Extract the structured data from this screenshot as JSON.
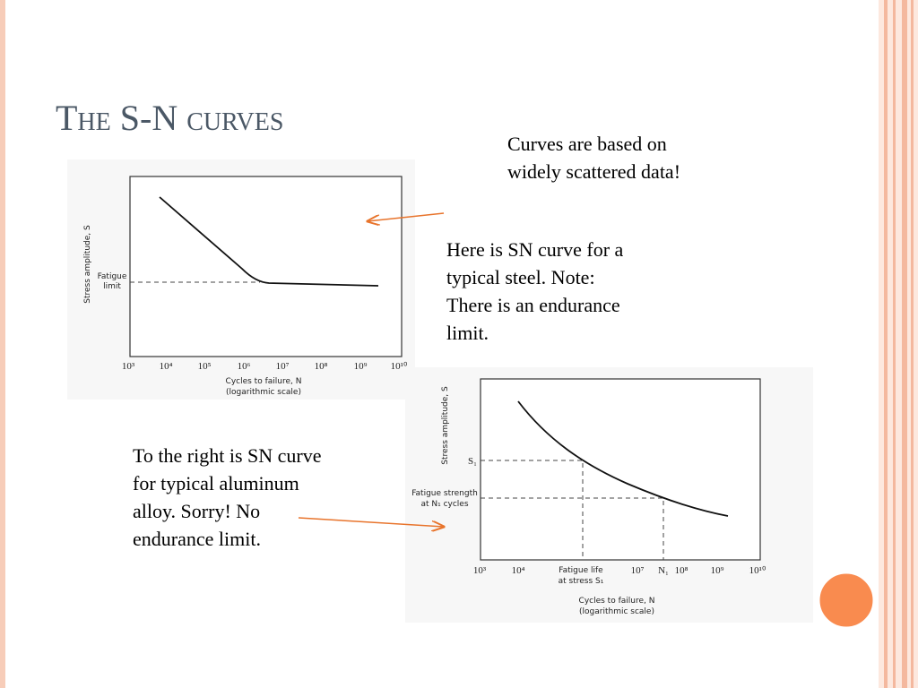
{
  "title": "The S-N curves",
  "notes": {
    "scatter": [
      "Curves are based on",
      "widely scattered data!"
    ],
    "steel": [
      "Here is SN curve for a",
      "typical steel.  Note:",
      "There is an endurance",
      "limit."
    ],
    "aluminum": [
      "To the right is SN curve",
      "for typical aluminum",
      "alloy. Sorry! No",
      "endurance limit."
    ]
  },
  "figures": [
    {
      "y_label": "Stress amplitude, S",
      "level_label": [
        "Fatigue",
        "limit"
      ],
      "x_ticks": [
        "10³",
        "10⁴",
        "10⁵",
        "10⁶",
        "10⁷",
        "10⁸",
        "10⁹",
        "10¹⁰"
      ],
      "x_label": [
        "Cycles to failure, N",
        "(logarithmic scale)"
      ]
    },
    {
      "y_label": "Stress amplitude, S",
      "stress_label": "S₁",
      "level_label": [
        "Fatigue strength",
        "at N₁ cycles"
      ],
      "x_ticks": [
        "10³",
        "10⁴",
        "10⁷",
        "N₁",
        "10⁸",
        "10⁹",
        "10¹⁰"
      ],
      "life_label": [
        "Fatigue life",
        "at stress S₁"
      ],
      "x_label": [
        "Cycles to failure, N",
        "(logarithmic scale)"
      ]
    }
  ]
}
